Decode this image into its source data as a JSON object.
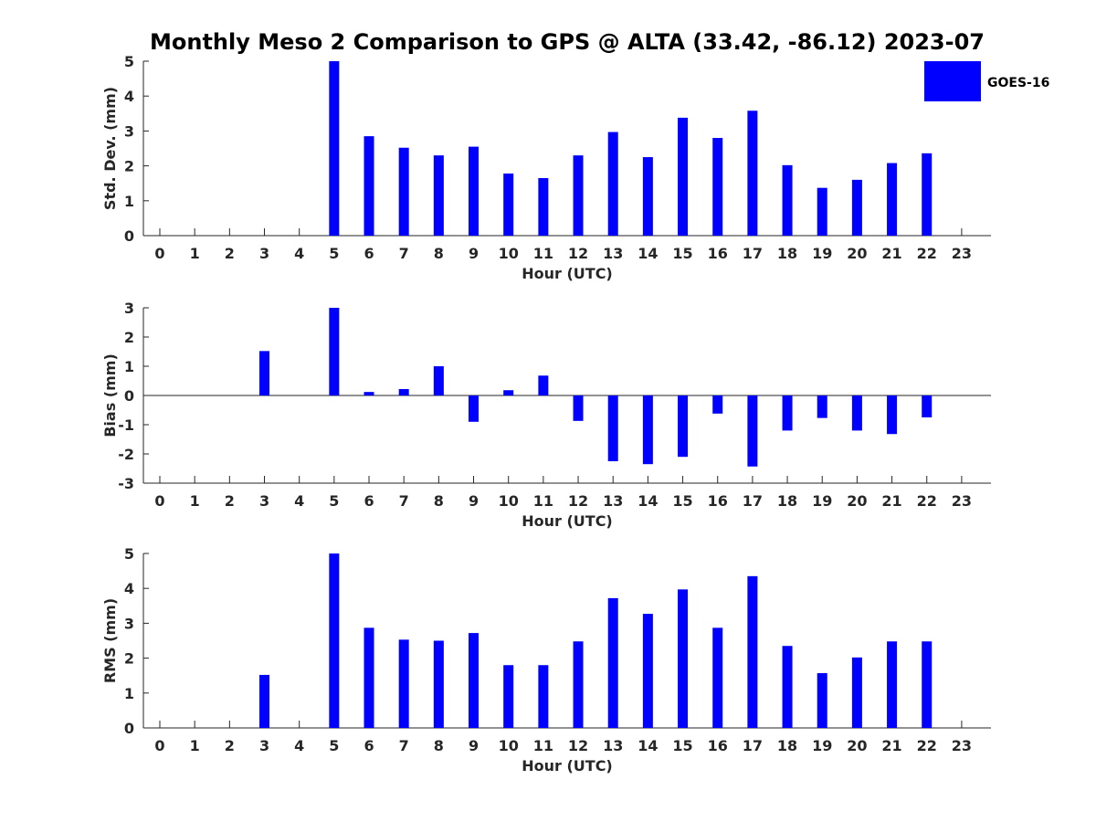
{
  "title": "Monthly Meso 2 Comparison to GPS @ ALTA (33.42, -86.12) 2023-07",
  "legend": {
    "label": "GOES-16",
    "color": "#0000ff",
    "placement": "top-right"
  },
  "chart_data": [
    {
      "type": "bar",
      "xlabel": "Hour (UTC)",
      "ylabel": "Std. Dev. (mm)",
      "ylim": [
        0,
        5
      ],
      "yticks": [
        "0",
        "1",
        "2",
        "3",
        "4",
        "5"
      ],
      "categories": [
        "0",
        "1",
        "2",
        "3",
        "4",
        "5",
        "6",
        "7",
        "8",
        "9",
        "10",
        "11",
        "12",
        "13",
        "14",
        "15",
        "16",
        "17",
        "18",
        "19",
        "20",
        "21",
        "22",
        "23"
      ],
      "series": [
        {
          "name": "GOES-16",
          "values": [
            null,
            null,
            null,
            null,
            null,
            5.0,
            2.85,
            2.52,
            2.3,
            2.55,
            1.78,
            1.65,
            2.3,
            2.97,
            2.25,
            3.38,
            2.8,
            3.58,
            2.02,
            1.37,
            1.6,
            2.08,
            2.36,
            null
          ]
        }
      ],
      "grid": false
    },
    {
      "type": "bar",
      "xlabel": "Hour (UTC)",
      "ylabel": "Bias (mm)",
      "ylim": [
        -3,
        3
      ],
      "yticks": [
        "-3",
        "-2",
        "-1",
        "0",
        "1",
        "2",
        "3"
      ],
      "categories": [
        "0",
        "1",
        "2",
        "3",
        "4",
        "5",
        "6",
        "7",
        "8",
        "9",
        "10",
        "11",
        "12",
        "13",
        "14",
        "15",
        "16",
        "17",
        "18",
        "19",
        "20",
        "21",
        "22",
        "23"
      ],
      "series": [
        {
          "name": "GOES-16",
          "values": [
            null,
            null,
            null,
            1.52,
            null,
            3.0,
            0.12,
            0.22,
            1.0,
            -0.9,
            0.18,
            0.68,
            -0.87,
            -2.25,
            -2.35,
            -2.1,
            -0.62,
            -2.43,
            -1.2,
            -0.77,
            -1.2,
            -1.32,
            -0.75,
            null
          ]
        }
      ],
      "grid": false
    },
    {
      "type": "bar",
      "xlabel": "Hour (UTC)",
      "ylabel": "RMS (mm)",
      "ylim": [
        0,
        5
      ],
      "yticks": [
        "0",
        "1",
        "2",
        "3",
        "4",
        "5"
      ],
      "categories": [
        "0",
        "1",
        "2",
        "3",
        "4",
        "5",
        "6",
        "7",
        "8",
        "9",
        "10",
        "11",
        "12",
        "13",
        "14",
        "15",
        "16",
        "17",
        "18",
        "19",
        "20",
        "21",
        "22",
        "23"
      ],
      "series": [
        {
          "name": "GOES-16",
          "values": [
            null,
            null,
            null,
            1.52,
            null,
            5.0,
            2.87,
            2.53,
            2.5,
            2.72,
            1.8,
            1.8,
            2.48,
            3.72,
            3.27,
            3.97,
            2.87,
            4.35,
            2.35,
            1.57,
            2.02,
            2.48,
            2.48,
            null
          ]
        }
      ],
      "grid": false
    }
  ]
}
